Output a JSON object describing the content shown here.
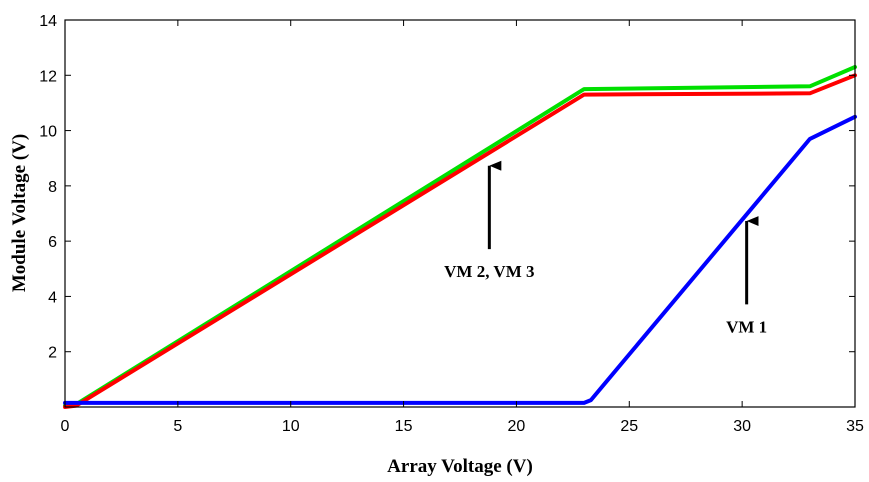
{
  "chart_data": {
    "type": "line",
    "title": "",
    "xlabel": "Array Voltage (V)",
    "ylabel": "Module Voltage (V)",
    "xlim": [
      0,
      35
    ],
    "ylim": [
      0,
      14
    ],
    "xticks": [
      0,
      5,
      10,
      15,
      20,
      25,
      30,
      35
    ],
    "yticks": [
      2,
      4,
      6,
      8,
      10,
      12,
      14
    ],
    "grid": false,
    "legend": "none",
    "series": [
      {
        "color": "#00e000",
        "x": [
          0,
          0.5,
          23,
          33,
          35
        ],
        "y": [
          0.05,
          0.1,
          11.5,
          11.6,
          12.3
        ]
      },
      {
        "color": "#ff0000",
        "x": [
          0,
          0.5,
          23,
          33,
          35
        ],
        "y": [
          0.0,
          0.05,
          11.3,
          11.35,
          12.0
        ]
      },
      {
        "color": "#0000ff",
        "x": [
          0,
          23,
          23.3,
          33,
          35
        ],
        "y": [
          0.15,
          0.15,
          0.25,
          9.7,
          10.5
        ]
      }
    ],
    "annotations": [
      {
        "text": "VM 2, VM 3",
        "arrow_to": [
          18.8,
          8.8
        ],
        "text_at": [
          18.8,
          4.7
        ]
      },
      {
        "text": "VM 1",
        "arrow_to": [
          30.2,
          6.8
        ],
        "text_at": [
          30.2,
          2.7
        ]
      }
    ]
  }
}
